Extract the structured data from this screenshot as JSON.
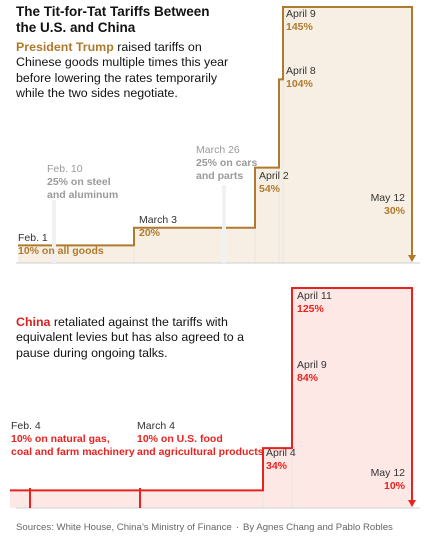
{
  "title": "The Tit-for-Tat Tariffs Between the U.S. and China",
  "us_intro": {
    "highlight": "President Trump",
    "text": " raised tariffs on Chinese goods multiple times this year before lowering the rates temporarily while the two sides negotiate."
  },
  "cn_intro": {
    "highlight": "China",
    "text": " retaliated against the tariffs with equivalent levies but has also agreed to a pause during ongoing talks."
  },
  "colors": {
    "us": "#b07a2e",
    "us_fill": "#f7efe3",
    "china": "#e8231f",
    "china_fill": "#fde8e6",
    "muted": "#9a9a9a"
  },
  "chart_data": [
    {
      "type": "line",
      "step": "post",
      "country": "United States",
      "x": [
        "Feb. 1",
        "March 3",
        "April 2",
        "April 8",
        "April 9",
        "May 12"
      ],
      "y": [
        10,
        20,
        54,
        104,
        145,
        30
      ],
      "ylim": [
        0,
        145
      ],
      "annotations": [
        {
          "date": "Feb. 1",
          "value": "10% on all goods",
          "muted": false
        },
        {
          "date": "Feb. 10",
          "value": "25% on steel and aluminum",
          "muted": true
        },
        {
          "date": "March 3",
          "value": "20%",
          "muted": false
        },
        {
          "date": "March 26",
          "value": "25% on cars and parts",
          "muted": true
        },
        {
          "date": "April 2",
          "value": "54%",
          "muted": false
        },
        {
          "date": "April 8",
          "value": "104%",
          "muted": false
        },
        {
          "date": "April 9",
          "value": "145%",
          "muted": false
        },
        {
          "date": "May 12",
          "value": "30%",
          "muted": false
        }
      ]
    },
    {
      "type": "line",
      "step": "post",
      "country": "China",
      "x": [
        "Feb. 4",
        "March 4",
        "April 4",
        "April 9",
        "April 11",
        "May 12"
      ],
      "y": [
        10,
        10,
        34,
        84,
        125,
        10
      ],
      "ylim": [
        0,
        125
      ],
      "annotations": [
        {
          "date": "Feb. 4",
          "value": "10% on natural gas, coal and farm machinery",
          "muted": false
        },
        {
          "date": "March 4",
          "value": "10% on U.S. food and agricultural products",
          "muted": false
        },
        {
          "date": "April 4",
          "value": "34%",
          "muted": false
        },
        {
          "date": "April 9",
          "value": "84%",
          "muted": false
        },
        {
          "date": "April 11",
          "value": "125%",
          "muted": false
        },
        {
          "date": "May 12",
          "value": "10%",
          "muted": false
        }
      ]
    }
  ],
  "source": {
    "sources": "Sources: White House, China’s Ministry of Finance",
    "separator": "·",
    "byline": "By Agnes Chang and Pablo Robles"
  }
}
